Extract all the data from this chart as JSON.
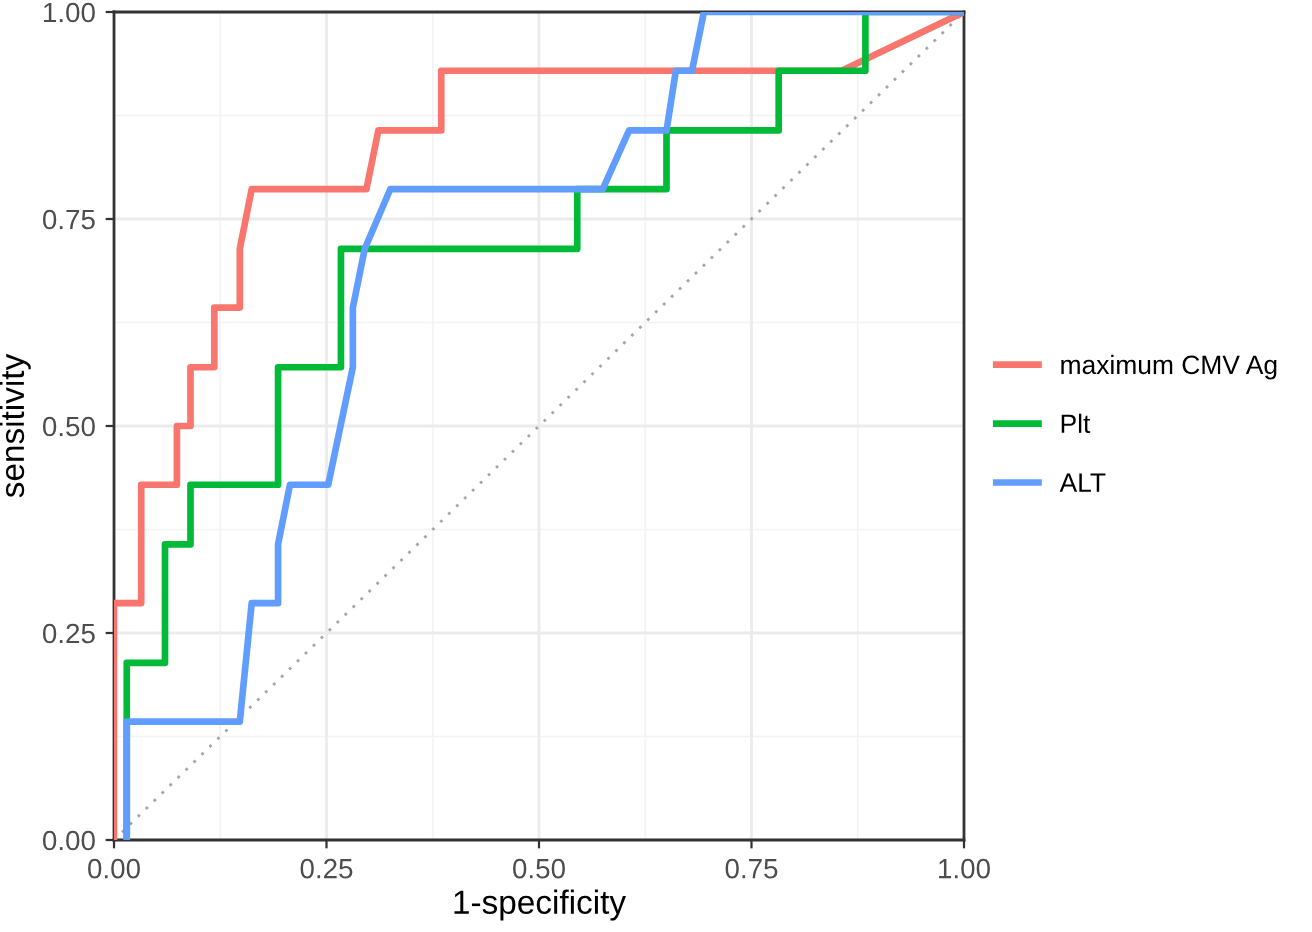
{
  "chart_data": {
    "type": "line",
    "xlabel": "1-specificity",
    "ylabel": "sensitivity",
    "xlim": [
      0,
      1
    ],
    "ylim": [
      0,
      1
    ],
    "xticks": [
      {
        "value": 0,
        "label": "0.00"
      },
      {
        "value": 0.25,
        "label": "0.25"
      },
      {
        "value": 0.5,
        "label": "0.50"
      },
      {
        "value": 0.75,
        "label": "0.75"
      },
      {
        "value": 1,
        "label": "1.00"
      }
    ],
    "yticks": [
      {
        "value": 0,
        "label": "0.00"
      },
      {
        "value": 0.25,
        "label": "0.25"
      },
      {
        "value": 0.5,
        "label": "0.50"
      },
      {
        "value": 0.75,
        "label": "0.75"
      },
      {
        "value": 1,
        "label": "1.00"
      }
    ],
    "grid": true,
    "legend": "right",
    "marker": "none",
    "series": [
      {
        "color": "#a6a6a6",
        "line_style": "dotted",
        "x": [
          0,
          1
        ],
        "values": [
          0,
          1
        ]
      },
      {
        "name": "maximum CMV Ag",
        "color": "#f8766d",
        "x": [
          0,
          0,
          0.032,
          0.032,
          0.074,
          0.074,
          0.09,
          0.09,
          0.118,
          0.118,
          0.148,
          0.148,
          0.162,
          0.297,
          0.311,
          0.385,
          0.385,
          0.856,
          1
        ],
        "values": [
          0,
          0.286,
          0.286,
          0.429,
          0.429,
          0.5,
          0.5,
          0.571,
          0.571,
          0.643,
          0.643,
          0.714,
          0.786,
          0.786,
          0.857,
          0.857,
          0.929,
          0.929,
          1
        ]
      },
      {
        "name": "Plt",
        "color": "#00ba38",
        "x": [
          0.015,
          0.015,
          0.06,
          0.06,
          0.09,
          0.09,
          0.193,
          0.193,
          0.267,
          0.267,
          0.545,
          0.545,
          0.65,
          0.65,
          0.782,
          0.782,
          0.884,
          0.884,
          1
        ],
        "values": [
          0,
          0.214,
          0.214,
          0.357,
          0.357,
          0.429,
          0.429,
          0.571,
          0.571,
          0.714,
          0.714,
          0.786,
          0.786,
          0.857,
          0.857,
          0.929,
          0.929,
          1,
          1
        ]
      },
      {
        "name": "ALT",
        "color": "#619cff",
        "x": [
          0.015,
          0.015,
          0.148,
          0.162,
          0.193,
          0.193,
          0.207,
          0.252,
          0.281,
          0.281,
          0.295,
          0.325,
          0.575,
          0.606,
          0.65,
          0.661,
          0.68,
          0.694,
          1
        ],
        "values": [
          0,
          0.143,
          0.143,
          0.286,
          0.286,
          0.357,
          0.429,
          0.429,
          0.571,
          0.643,
          0.714,
          0.786,
          0.786,
          0.857,
          0.857,
          0.929,
          0.929,
          1,
          1
        ]
      }
    ]
  }
}
